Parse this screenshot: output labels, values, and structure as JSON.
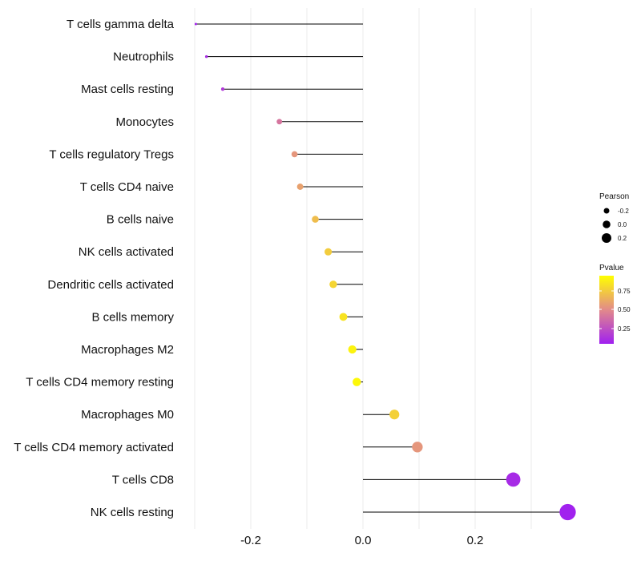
{
  "chart_data": {
    "type": "lollipop",
    "title": "",
    "xlabel": "",
    "ylabel": "",
    "xlim": [
      -0.31,
      0.38
    ],
    "x_ticks": [
      -0.2,
      0.0,
      0.2
    ],
    "x_tick_labels": [
      "-0.2",
      "0.0",
      "0.2"
    ],
    "grid": "vertical",
    "categories": [
      "T cells gamma delta",
      "Neutrophils",
      "Mast cells resting",
      "Monocytes",
      "T cells regulatory  Tregs",
      "T cells CD4 naive",
      "B cells naive",
      "NK cells activated",
      "Dendritic cells activated",
      "B cells memory",
      "Macrophages M2",
      "T cells CD4 memory resting",
      "Macrophages M0",
      "T cells CD4 memory activated",
      "T cells CD8",
      "NK cells resting"
    ],
    "pearson": [
      -0.298,
      -0.279,
      -0.25,
      -0.149,
      -0.122,
      -0.112,
      -0.085,
      -0.062,
      -0.053,
      -0.035,
      -0.019,
      -0.011,
      0.056,
      0.097,
      0.268,
      0.365
    ],
    "pvalue": [
      0.02,
      0.06,
      0.12,
      0.4,
      0.55,
      0.6,
      0.72,
      0.78,
      0.82,
      0.88,
      0.95,
      0.97,
      0.8,
      0.55,
      0.05,
      0.01
    ],
    "legend": {
      "position": "right",
      "size_title": "Pearson",
      "size_breaks": [
        "-0.2",
        "0.0",
        "0.2"
      ],
      "color_title": "Pvalue",
      "color_breaks": [
        "0.75",
        "0.50",
        "0.25"
      ],
      "color_low": "#a020f0",
      "color_mid": "#e28a8a",
      "color_high": "#ffff00"
    }
  }
}
